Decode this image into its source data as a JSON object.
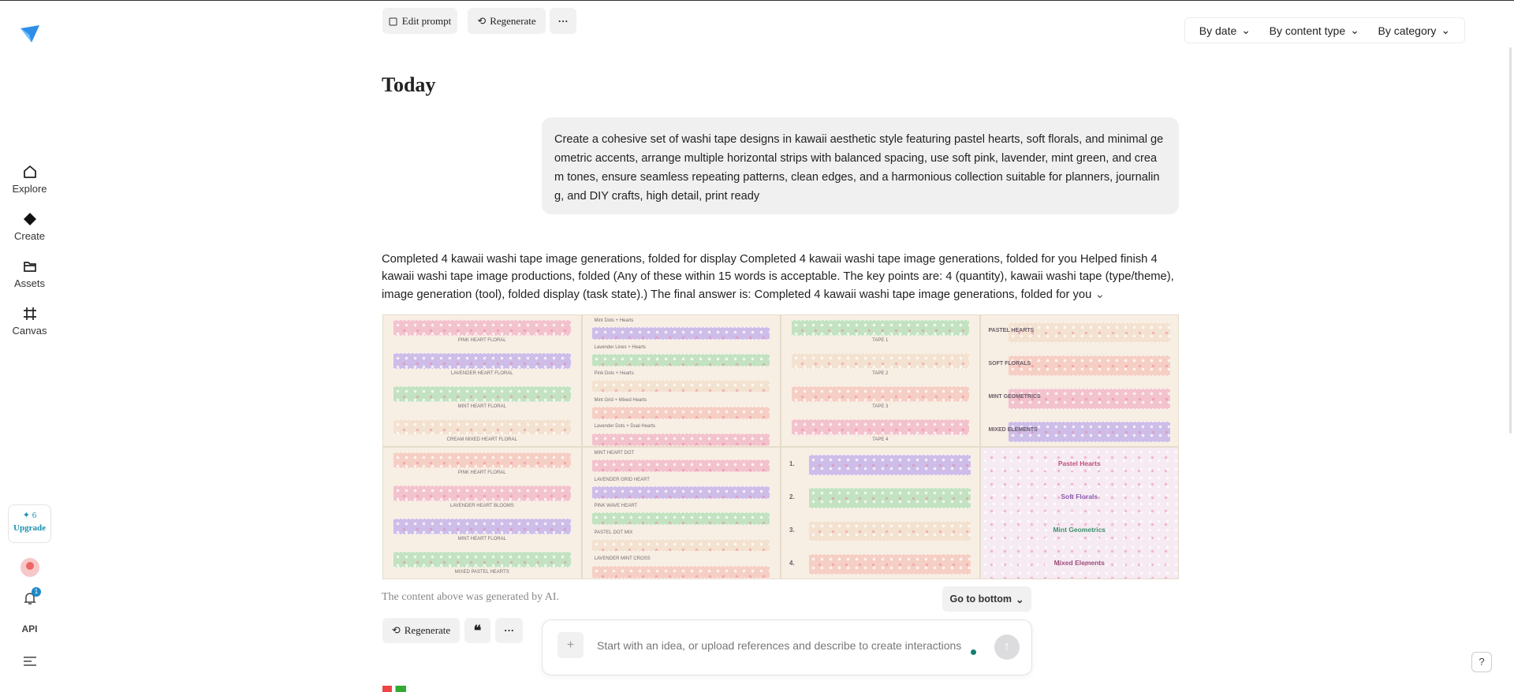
{
  "sidebar": {
    "nav": [
      "Explore",
      "Create",
      "Assets",
      "Canvas"
    ],
    "credits": "6",
    "upgrade": "Upgrade",
    "notifications": "1",
    "api": "API"
  },
  "toolbar": {
    "edit_prompt": "Edit prompt",
    "regenerate": "Regenerate"
  },
  "filters": [
    "By date",
    "By content type",
    "By category"
  ],
  "section_title": "Today",
  "prompt": "Create a cohesive set of washi tape designs in kawaii aesthetic style featuring pastel hearts, soft florals, and minimal geometric accents, arrange multiple horizontal strips with balanced spacing, use soft pink, lavender, mint green, and cream tones, ensure seamless repeating patterns, clean edges, and a harmonious collection suitable for planners, journaling, and DIY crafts, high detail, print ready",
  "response": "Completed 4 kawaii washi tape image generations, folded for display Completed 4 kawaii washi tape image generations, folded for you Helped finish 4 kawaii washi tape image productions, folded (Any of these within 15 words is acceptable. The key points are: 4 (quantity), kawaii washi tape (type/theme), image generation (tool), folded display (task state).) The final answer is: Completed 4 kawaii washi tape image generations, folded for you",
  "images": {
    "panels": [
      {
        "captions": [
          "PINK HEART FLORAL",
          "LAVENDER HEART FLORAL",
          "MINT HEART FLORAL",
          "CREAM MIXED HEART FLORAL"
        ]
      },
      {
        "captions": [
          "Mint Dots + Hearts",
          "Lavender Lines + Hearts",
          "Pink Dots + Hearts",
          "Mint Grid + Mixed Hearts",
          "Lavender Dots + Dual Hearts"
        ]
      },
      {
        "captions": [
          "TAPE 1",
          "TAPE 2",
          "TAPE 3",
          "TAPE 4"
        ]
      },
      {
        "captions": [
          "PASTEL HEARTS",
          "SOFT FLORALS",
          "MINT GEOMETRICS",
          "MIXED ELEMENTS"
        ]
      },
      {
        "captions": [
          "PINK HEART FLORAL",
          "LAVENDER HEART BLOOMS",
          "MINT HEART FLORAL",
          "MIXED PASTEL HEARTS"
        ]
      },
      {
        "captions": [
          "MINT HEART DOT",
          "LAVENDER GRID HEART",
          "PINK WAVE HEART",
          "PASTEL DOT MIX",
          "LAVENDER MINT CROSS"
        ]
      },
      {
        "captions": [
          "1.",
          "2.",
          "3.",
          "4."
        ]
      },
      {
        "captions": [
          "Pastel Hearts",
          "Soft Florals",
          "Mint Geometrics",
          "Mixed Elements"
        ]
      }
    ]
  },
  "disclaimer": "The content above was generated by AI.",
  "go_to_bottom": "Go to bottom",
  "actions": {
    "regenerate": "Regenerate"
  },
  "input_placeholder": "Start with an idea, or upload references and describe to create interactions"
}
